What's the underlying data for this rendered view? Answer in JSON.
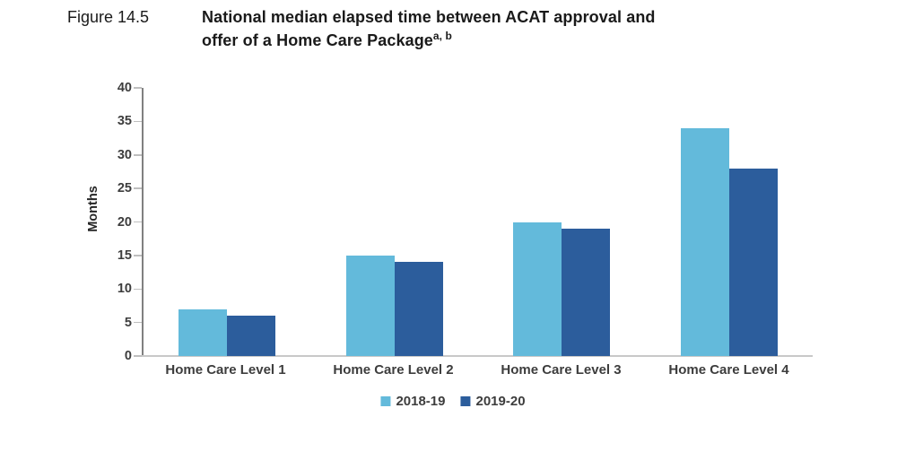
{
  "figure": {
    "label": "Figure 14.5",
    "title_line1": "National median elapsed time between ACAT approval and",
    "title_line2": "offer of a Home Care Package",
    "title_superscript": "a, b"
  },
  "chart_data": {
    "type": "bar",
    "title": "National median elapsed time between ACAT approval and offer of a Home Care Package",
    "categories": [
      "Home Care Level 1",
      "Home Care Level 2",
      "Home Care Level 3",
      "Home Care Level 4"
    ],
    "series": [
      {
        "name": "2018-19",
        "color": "#63BADB",
        "values": [
          7,
          15,
          20,
          34
        ]
      },
      {
        "name": "2019-20",
        "color": "#2C5D9C",
        "values": [
          6,
          14,
          19,
          28
        ]
      }
    ],
    "xlabel": "",
    "ylabel": "Months",
    "ylim": [
      0,
      40
    ],
    "yticks": [
      0,
      5,
      10,
      15,
      20,
      25,
      30,
      35,
      40
    ],
    "grid": false,
    "legend_position": "bottom"
  },
  "colors": {
    "axis_line": "#808080",
    "tick_mark": "#bfbfbf",
    "baseline": "#c8c8c8",
    "label_text": "#3d3d3d",
    "title_text": "#1a1a1a"
  }
}
